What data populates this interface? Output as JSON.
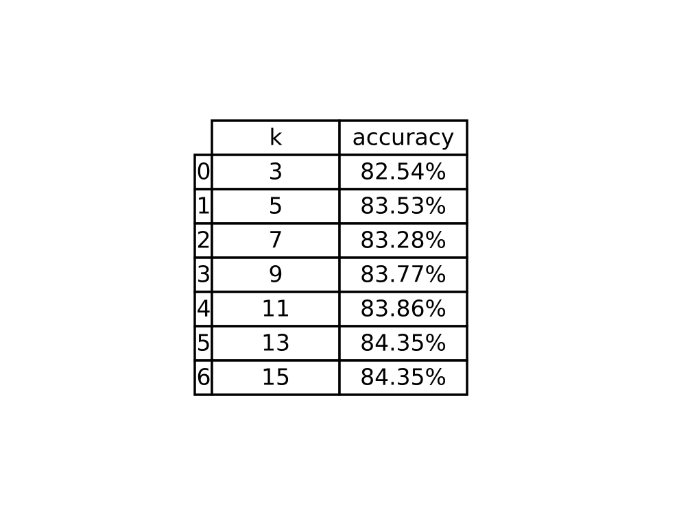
{
  "chart_data": {
    "type": "table",
    "columns": [
      "k",
      "accuracy"
    ],
    "index": [
      "0",
      "1",
      "2",
      "3",
      "4",
      "5",
      "6"
    ],
    "rows": [
      [
        "3",
        "82.54%"
      ],
      [
        "5",
        "83.53%"
      ],
      [
        "7",
        "83.28%"
      ],
      [
        "9",
        "83.77%"
      ],
      [
        "11",
        "83.86%"
      ],
      [
        "13",
        "84.35%"
      ],
      [
        "15",
        "84.35%"
      ]
    ]
  }
}
